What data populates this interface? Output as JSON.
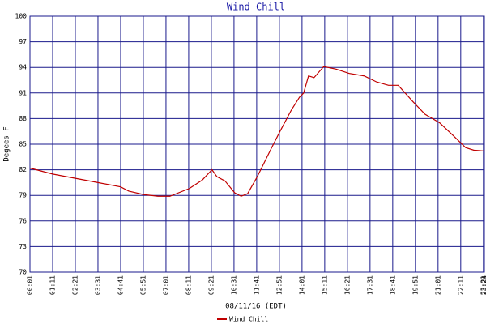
{
  "chart_data": {
    "type": "line",
    "title": "Wind Chill",
    "y_label": "Degees F",
    "x_label": "08/11/16 (EDT)",
    "xlim": [
      1,
      1404
    ],
    "xticks": [
      {
        "value": 1,
        "label": "00:01"
      },
      {
        "value": 71,
        "label": "01:11"
      },
      {
        "value": 141,
        "label": "02:21"
      },
      {
        "value": 211,
        "label": "03:31"
      },
      {
        "value": 281,
        "label": "04:41"
      },
      {
        "value": 351,
        "label": "05:51"
      },
      {
        "value": 421,
        "label": "07:01"
      },
      {
        "value": 491,
        "label": "08:11"
      },
      {
        "value": 561,
        "label": "09:21"
      },
      {
        "value": 631,
        "label": "10:31"
      },
      {
        "value": 701,
        "label": "11:41"
      },
      {
        "value": 771,
        "label": "12:51"
      },
      {
        "value": 841,
        "label": "14:01"
      },
      {
        "value": 911,
        "label": "15:11"
      },
      {
        "value": 981,
        "label": "16:21"
      },
      {
        "value": 1051,
        "label": "17:31"
      },
      {
        "value": 1121,
        "label": "18:41"
      },
      {
        "value": 1191,
        "label": "19:51"
      },
      {
        "value": 1261,
        "label": "21:01"
      },
      {
        "value": 1331,
        "label": "22:11"
      },
      {
        "value": 1401,
        "label": "23:21"
      },
      {
        "value": 1404,
        "label": "23:24"
      }
    ],
    "ylim": [
      70,
      100
    ],
    "yticks": [
      70,
      73,
      76,
      79,
      82,
      85,
      88,
      91,
      94,
      97,
      100
    ],
    "grid": true,
    "x": [
      1,
      71,
      141,
      211,
      281,
      306,
      351,
      396,
      433,
      493,
      533,
      563,
      578,
      603,
      633,
      653,
      673,
      703,
      746,
      773,
      808,
      833,
      846,
      861,
      878,
      908,
      946,
      986,
      1033,
      1071,
      1108,
      1138,
      1183,
      1221,
      1266,
      1308,
      1346,
      1371,
      1404
    ],
    "series": [
      {
        "name": "Wind Chill",
        "color": "#c00000",
        "values": [
          82.2,
          81.5,
          81.0,
          80.5,
          80.0,
          79.5,
          79.1,
          78.9,
          78.9,
          79.8,
          80.8,
          82.0,
          81.2,
          80.7,
          79.3,
          78.9,
          79.2,
          81.2,
          84.5,
          86.5,
          89.0,
          90.5,
          91.0,
          93.0,
          92.8,
          94.1,
          93.8,
          93.3,
          93.0,
          92.3,
          91.9,
          91.9,
          90.0,
          88.5,
          87.5,
          86.0,
          84.6,
          84.3,
          84.2
        ]
      }
    ]
  }
}
